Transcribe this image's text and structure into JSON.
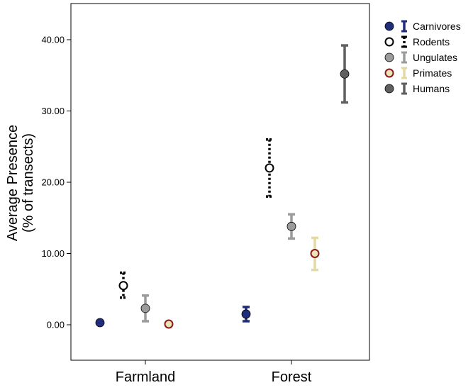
{
  "chart_data": {
    "type": "scatter",
    "subtype": "error-bar-means",
    "title": "",
    "xlabel": "",
    "ylabel_lines": [
      "Average Presence",
      "(% of transects)"
    ],
    "categories": [
      "Farmland",
      "Forest"
    ],
    "yticks": [
      "0.00",
      "10.00",
      "20.00",
      "30.00",
      "40.00"
    ],
    "ylim": [
      -5,
      45
    ],
    "grid": false,
    "legend_position": "top-right",
    "series": [
      {
        "name": "Carnivores",
        "marker": "filled-circle",
        "color": "#1f2d7a",
        "fill": "#1f2d7a",
        "dashed": false,
        "values": [
          0.3,
          1.5
        ],
        "lower": [
          0.1,
          0.5
        ],
        "upper": [
          0.5,
          2.5
        ]
      },
      {
        "name": "Rodents",
        "marker": "hollow-circle",
        "color": "#000000",
        "fill": "#ffffff",
        "dashed": true,
        "values": [
          5.5,
          22.0
        ],
        "lower": [
          3.8,
          18.0
        ],
        "upper": [
          7.3,
          26.0
        ]
      },
      {
        "name": "Ungulates",
        "marker": "filled-circle",
        "color": "#9b9b9b",
        "fill": "#9b9b9b",
        "dashed": false,
        "values": [
          2.3,
          13.8
        ],
        "lower": [
          0.5,
          12.1
        ],
        "upper": [
          4.1,
          15.5
        ]
      },
      {
        "name": "Primates",
        "marker": "ringed-circle",
        "color": "#e3d9a3",
        "fill": "#ece4b8",
        "ring": "#8b1a1a",
        "dashed": false,
        "values": [
          0.1,
          10.0
        ],
        "lower": [
          0.0,
          7.7
        ],
        "upper": [
          0.3,
          12.2
        ]
      },
      {
        "name": "Humans",
        "marker": "filled-circle",
        "color": "#5f5f5f",
        "fill": "#5f5f5f",
        "dashed": false,
        "values": [
          null,
          35.2
        ],
        "lower": [
          null,
          31.2
        ],
        "upper": [
          null,
          39.2
        ]
      }
    ]
  }
}
